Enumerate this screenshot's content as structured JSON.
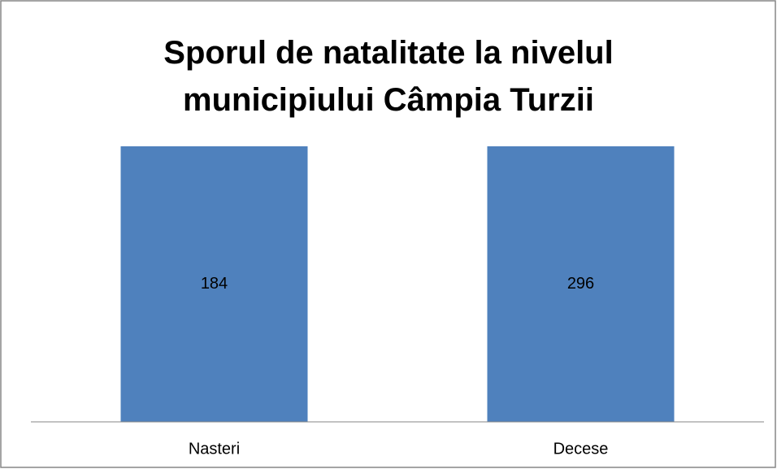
{
  "chart_data": {
    "type": "stacked100",
    "title": "Sporul de natalitate la nivelul municipiului Câmpia Turzii",
    "categories": [
      "Nasteri",
      "Decese"
    ],
    "values": [
      184,
      296
    ],
    "color": "#4f81bd"
  }
}
